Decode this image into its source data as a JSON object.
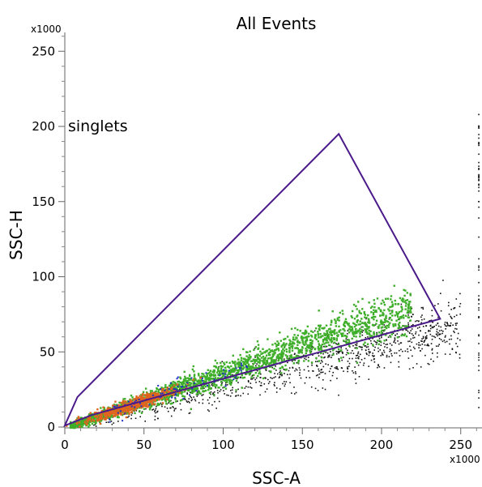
{
  "chart_data": {
    "type": "scatter",
    "title": "All Events",
    "xlabel": "SSC-A",
    "ylabel": "SSC-H",
    "x_multiplier": "x1000",
    "y_multiplier": "x1000",
    "xlim": [
      0,
      262
    ],
    "ylim": [
      0,
      262
    ],
    "x_ticks": [
      0,
      50,
      100,
      150,
      200,
      250
    ],
    "y_ticks": [
      0,
      50,
      100,
      150,
      200,
      250
    ],
    "grid": false,
    "colors": {
      "gate": "#4b1a8a",
      "events": "#111111",
      "gated_low": "#3fae2a",
      "gated_high": "#e1641f",
      "gated_blue": "#2030c8"
    },
    "gate": {
      "name": "singlets",
      "vertices": [
        [
          0,
          1
        ],
        [
          8,
          20
        ],
        [
          173,
          195
        ],
        [
          237,
          72
        ],
        [
          17,
          8
        ]
      ]
    },
    "population": {
      "slope_singlets": 0.36,
      "slope_all": 0.27,
      "x_range": [
        2,
        262
      ]
    }
  }
}
